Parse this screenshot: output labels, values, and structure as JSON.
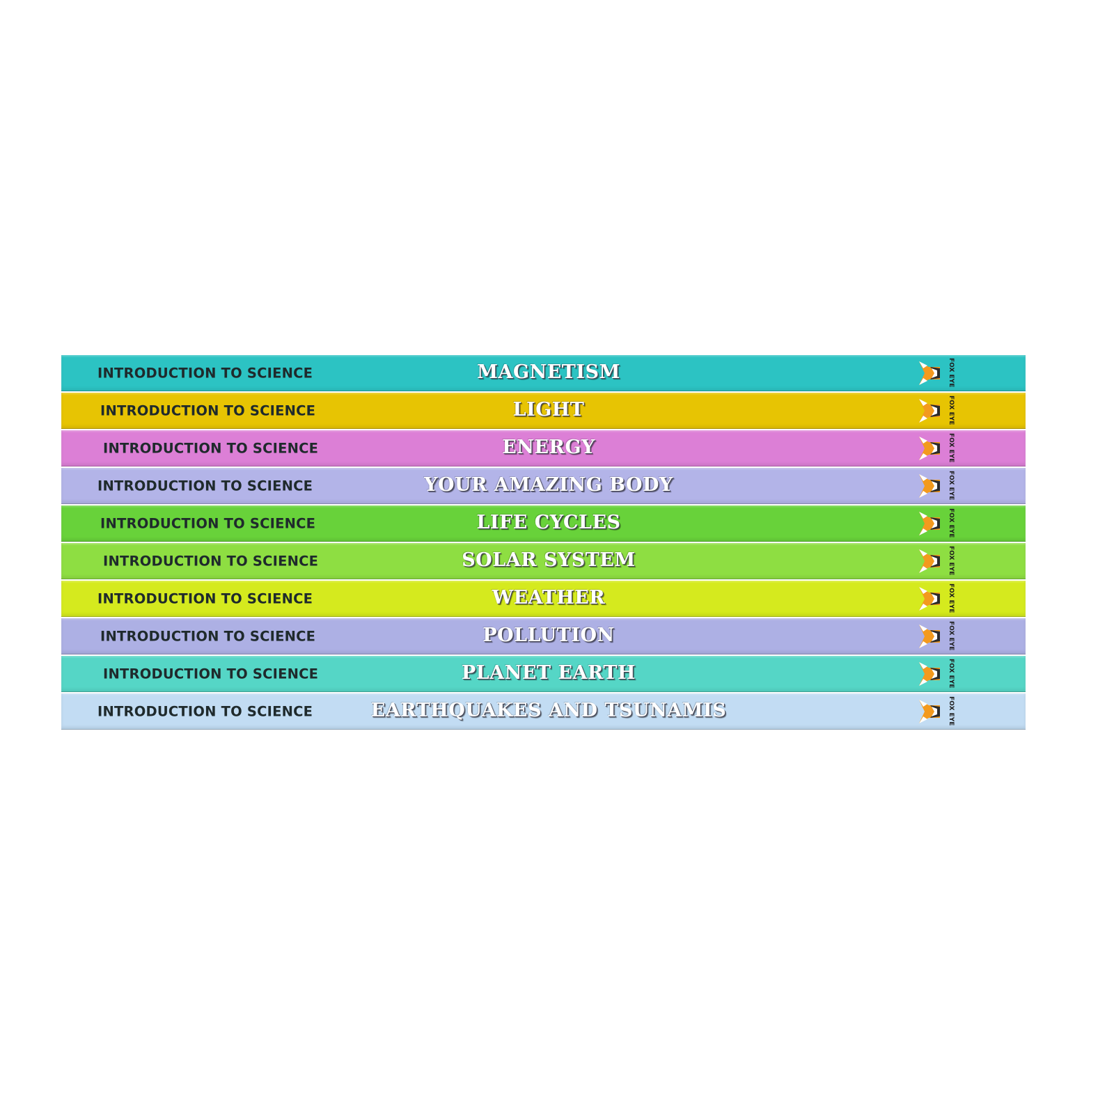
{
  "series_label": "INTRODUCTION TO SCIENCE",
  "publisher_logo": {
    "icon": "fox-head-icon",
    "text": "FOX EYE"
  },
  "books": [
    {
      "title": "MAGNETISM",
      "color": "#2cc3c3"
    },
    {
      "title": "LIGHT",
      "color": "#e7c403"
    },
    {
      "title": "ENERGY",
      "color": "#dc7fd6"
    },
    {
      "title": "YOUR AMAZING BODY",
      "color": "#b3b4e8"
    },
    {
      "title": "LIFE CYCLES",
      "color": "#68d23a"
    },
    {
      "title": "SOLAR SYSTEM",
      "color": "#8ede42"
    },
    {
      "title": "WEATHER",
      "color": "#d5ea1e"
    },
    {
      "title": "POLLUTION",
      "color": "#adb0e4"
    },
    {
      "title": "PLANET EARTH",
      "color": "#55d6c6"
    },
    {
      "title": "EARTHQUAKES AND TSUNAMIS",
      "color": "#c2dcf3"
    }
  ]
}
